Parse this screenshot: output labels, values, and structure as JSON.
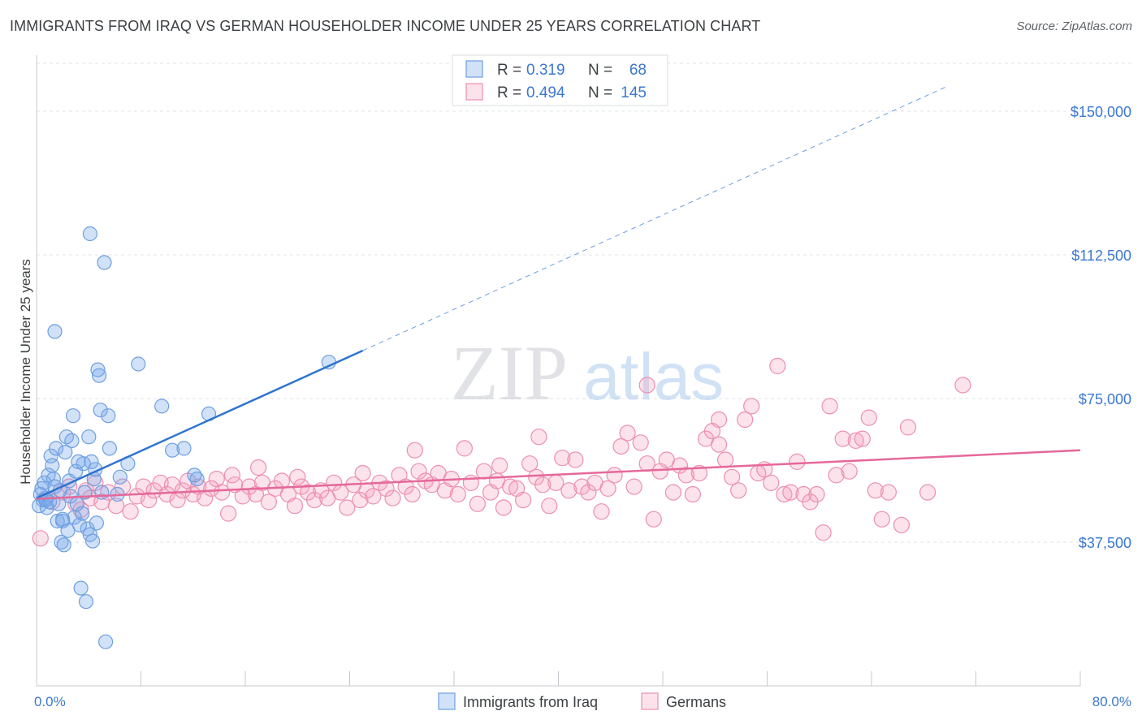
{
  "title": "IMMIGRANTS FROM IRAQ VS GERMAN HOUSEHOLDER INCOME UNDER 25 YEARS CORRELATION CHART",
  "source": "Source: ZipAtlas.com",
  "watermark": {
    "zip": "ZIP",
    "atlas": "atlas"
  },
  "colors": {
    "iraq_fill": "rgba(120,170,235,0.35)",
    "iraq_stroke": "#6f9fe0",
    "iraq_line": "#2f74d0",
    "german_fill": "rgba(245,160,190,0.30)",
    "german_stroke": "#ec8fb0",
    "german_line": "#e5689a",
    "grid": "#dfe3e8",
    "axis_text": "#3b78d0"
  },
  "legend": {
    "rows": [
      {
        "r_label": "R =",
        "r_value": "0.319",
        "n_label": "N =",
        "n_value": "68",
        "series": "iraq"
      },
      {
        "r_label": "R =",
        "r_value": "0.494",
        "n_label": "N =",
        "n_value": "145",
        "series": "german"
      }
    ]
  },
  "bottom_legend": [
    "Immigrants from Iraq",
    "Germans"
  ],
  "chart_data": {
    "type": "scatter",
    "title": "IMMIGRANTS FROM IRAQ VS GERMAN HOUSEHOLDER INCOME UNDER 25 YEARS CORRELATION CHART",
    "xlabel": "",
    "ylabel": "Householder Income Under 25 years",
    "xlim": [
      0,
      80
    ],
    "ylim": [
      0,
      162500
    ],
    "x_tick_labels": [
      "0.0%",
      "80.0%"
    ],
    "y_ticks": [
      37500,
      75000,
      112500,
      150000
    ],
    "y_tick_labels": [
      "$37,500",
      "$75,000",
      "$112,500",
      "$150,000"
    ],
    "grid": true,
    "legend_position": "top-center",
    "series": [
      {
        "name": "Immigrants from Iraq",
        "key": "iraq",
        "trend": {
          "x0": 0,
          "y0": 49000,
          "x1": 25,
          "y1": 87500,
          "dash_to_x": 80
        },
        "points": [
          [
            0.2,
            47000
          ],
          [
            0.3,
            50000
          ],
          [
            0.4,
            51500
          ],
          [
            0.5,
            48500
          ],
          [
            0.6,
            53000
          ],
          [
            0.7,
            49000
          ],
          [
            0.8,
            46500
          ],
          [
            0.9,
            55000
          ],
          [
            1.0,
            48000
          ],
          [
            1.1,
            60000
          ],
          [
            1.2,
            57500
          ],
          [
            1.3,
            54000
          ],
          [
            1.4,
            52000
          ],
          [
            1.5,
            62000
          ],
          [
            1.6,
            43000
          ],
          [
            1.7,
            47500
          ],
          [
            1.8,
            51000
          ],
          [
            1.9,
            37500
          ],
          [
            2.0,
            43500
          ],
          [
            2.1,
            36800
          ],
          [
            2.2,
            61000
          ],
          [
            2.3,
            65000
          ],
          [
            2.4,
            40500
          ],
          [
            2.5,
            53500
          ],
          [
            2.6,
            49500
          ],
          [
            2.7,
            64000
          ],
          [
            2.8,
            70500
          ],
          [
            2.9,
            44000
          ],
          [
            3.0,
            56000
          ],
          [
            3.1,
            47500
          ],
          [
            3.2,
            58500
          ],
          [
            3.3,
            42000
          ],
          [
            3.4,
            25500
          ],
          [
            3.5,
            45000
          ],
          [
            3.6,
            58000
          ],
          [
            3.7,
            50500
          ],
          [
            3.8,
            22000
          ],
          [
            3.9,
            41000
          ],
          [
            4.0,
            65000
          ],
          [
            4.1,
            39500
          ],
          [
            4.2,
            58500
          ],
          [
            4.3,
            37800
          ],
          [
            4.4,
            54000
          ],
          [
            4.5,
            56500
          ],
          [
            4.6,
            42500
          ],
          [
            4.7,
            82500
          ],
          [
            4.8,
            81000
          ],
          [
            4.9,
            72000
          ],
          [
            5.0,
            50500
          ],
          [
            5.2,
            110500
          ],
          [
            5.5,
            70500
          ],
          [
            5.6,
            62000
          ],
          [
            4.1,
            118000
          ],
          [
            1.4,
            92500
          ],
          [
            5.3,
            11500
          ],
          [
            6.2,
            50000
          ],
          [
            6.4,
            54500
          ],
          [
            7.0,
            58000
          ],
          [
            7.8,
            84000
          ],
          [
            9.6,
            73000
          ],
          [
            10.4,
            61500
          ],
          [
            11.3,
            62000
          ],
          [
            12.3,
            54000
          ],
          [
            12.1,
            55000
          ],
          [
            13.2,
            71000
          ],
          [
            22.4,
            84500
          ],
          [
            2.0,
            43000
          ],
          [
            0.7,
            48500
          ]
        ]
      },
      {
        "name": "Germans",
        "key": "german",
        "trend": {
          "x0": 0,
          "y0": 48800,
          "x1": 80,
          "y1": 61500
        },
        "points": [
          [
            0.3,
            38500
          ],
          [
            1.2,
            48000
          ],
          [
            2.0,
            50500
          ],
          [
            2.5,
            52000
          ],
          [
            3.0,
            47500
          ],
          [
            3.4,
            46000
          ],
          [
            3.8,
            51000
          ],
          [
            4.1,
            49000
          ],
          [
            4.5,
            53000
          ],
          [
            5.0,
            48000
          ],
          [
            5.5,
            50500
          ],
          [
            6.1,
            47000
          ],
          [
            6.6,
            52000
          ],
          [
            7.2,
            45500
          ],
          [
            7.7,
            49500
          ],
          [
            8.2,
            52000
          ],
          [
            8.6,
            48500
          ],
          [
            9.0,
            51000
          ],
          [
            9.5,
            53000
          ],
          [
            10.0,
            50000
          ],
          [
            10.4,
            52500
          ],
          [
            10.8,
            48500
          ],
          [
            11.2,
            51000
          ],
          [
            11.6,
            53500
          ],
          [
            12.0,
            50000
          ],
          [
            12.4,
            52000
          ],
          [
            12.9,
            49000
          ],
          [
            13.4,
            51500
          ],
          [
            13.8,
            54000
          ],
          [
            14.2,
            50500
          ],
          [
            14.7,
            45000
          ],
          [
            15.2,
            52500
          ],
          [
            15.8,
            49500
          ],
          [
            16.3,
            52000
          ],
          [
            16.8,
            50000
          ],
          [
            17.3,
            53000
          ],
          [
            17.8,
            48000
          ],
          [
            18.3,
            51500
          ],
          [
            18.8,
            53500
          ],
          [
            19.3,
            50000
          ],
          [
            19.8,
            47000
          ],
          [
            20.3,
            52000
          ],
          [
            20.8,
            50500
          ],
          [
            21.3,
            48500
          ],
          [
            21.8,
            51000
          ],
          [
            22.3,
            49000
          ],
          [
            22.8,
            53000
          ],
          [
            23.3,
            50500
          ],
          [
            23.8,
            46500
          ],
          [
            24.3,
            52500
          ],
          [
            24.8,
            48500
          ],
          [
            25.3,
            51000
          ],
          [
            25.8,
            49500
          ],
          [
            26.3,
            53000
          ],
          [
            26.8,
            51500
          ],
          [
            27.3,
            49000
          ],
          [
            27.8,
            55000
          ],
          [
            28.3,
            52000
          ],
          [
            28.8,
            50000
          ],
          [
            29.3,
            56000
          ],
          [
            29.8,
            53500
          ],
          [
            30.3,
            52500
          ],
          [
            30.8,
            55500
          ],
          [
            31.3,
            51000
          ],
          [
            31.8,
            54000
          ],
          [
            32.3,
            50000
          ],
          [
            32.8,
            62000
          ],
          [
            33.3,
            53000
          ],
          [
            33.8,
            47500
          ],
          [
            34.3,
            56000
          ],
          [
            34.8,
            50500
          ],
          [
            35.3,
            53500
          ],
          [
            35.8,
            46500
          ],
          [
            36.3,
            52000
          ],
          [
            36.8,
            51500
          ],
          [
            37.3,
            48500
          ],
          [
            37.8,
            58000
          ],
          [
            38.3,
            54500
          ],
          [
            38.8,
            52500
          ],
          [
            39.3,
            47000
          ],
          [
            39.8,
            53000
          ],
          [
            40.3,
            59500
          ],
          [
            40.8,
            51000
          ],
          [
            41.3,
            59000
          ],
          [
            41.8,
            52000
          ],
          [
            42.3,
            50500
          ],
          [
            42.8,
            53000
          ],
          [
            43.3,
            45500
          ],
          [
            43.8,
            51500
          ],
          [
            44.3,
            55000
          ],
          [
            44.8,
            62500
          ],
          [
            45.3,
            66000
          ],
          [
            45.8,
            52000
          ],
          [
            46.3,
            63500
          ],
          [
            46.8,
            58000
          ],
          [
            47.3,
            43500
          ],
          [
            47.8,
            56000
          ],
          [
            48.3,
            59000
          ],
          [
            48.8,
            50500
          ],
          [
            49.3,
            57500
          ],
          [
            49.8,
            55000
          ],
          [
            50.3,
            50000
          ],
          [
            50.8,
            55500
          ],
          [
            51.3,
            64500
          ],
          [
            51.8,
            66500
          ],
          [
            52.3,
            63000
          ],
          [
            52.8,
            59000
          ],
          [
            53.3,
            54500
          ],
          [
            53.8,
            51000
          ],
          [
            54.3,
            69500
          ],
          [
            54.8,
            73000
          ],
          [
            55.3,
            55500
          ],
          [
            55.8,
            56500
          ],
          [
            56.3,
            53000
          ],
          [
            56.8,
            83500
          ],
          [
            57.3,
            50000
          ],
          [
            57.8,
            50500
          ],
          [
            58.3,
            58500
          ],
          [
            58.8,
            50000
          ],
          [
            59.3,
            48000
          ],
          [
            59.8,
            50000
          ],
          [
            60.3,
            40000
          ],
          [
            60.8,
            73000
          ],
          [
            61.3,
            55000
          ],
          [
            61.8,
            64500
          ],
          [
            62.3,
            56000
          ],
          [
            62.8,
            64000
          ],
          [
            63.3,
            64500
          ],
          [
            63.8,
            70000
          ],
          [
            64.3,
            51000
          ],
          [
            64.8,
            43500
          ],
          [
            65.3,
            50500
          ],
          [
            66.3,
            42000
          ],
          [
            66.8,
            67500
          ],
          [
            68.3,
            50500
          ],
          [
            71.0,
            78500
          ],
          [
            46.8,
            78500
          ],
          [
            52.3,
            69500
          ],
          [
            38.5,
            65000
          ],
          [
            29.0,
            61500
          ],
          [
            35.5,
            57500
          ],
          [
            25.0,
            55500
          ],
          [
            20.0,
            54500
          ],
          [
            17.0,
            57000
          ],
          [
            15.0,
            55000
          ]
        ]
      }
    ]
  }
}
